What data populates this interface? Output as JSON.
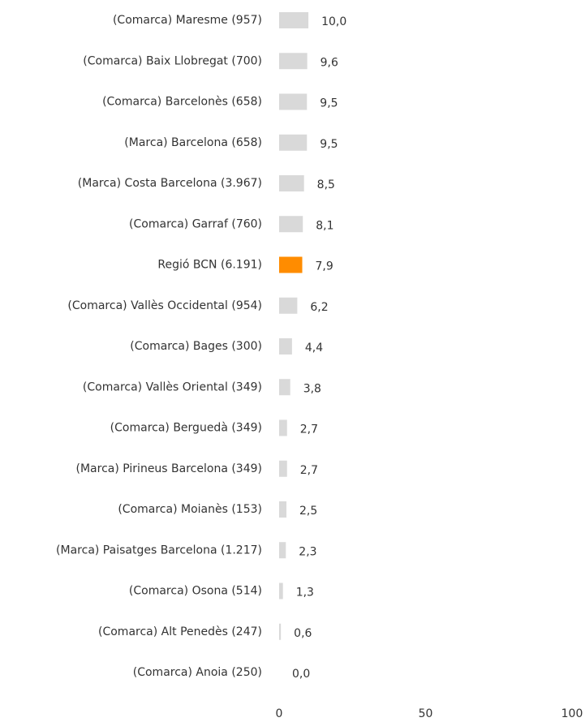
{
  "chart_data": {
    "type": "hbar",
    "categories": [
      "(Comarca) Maresme (957)",
      "(Comarca) Baix Llobregat (700)",
      "(Comarca) Barcelonès (658)",
      "(Marca) Barcelona (658)",
      "(Marca) Costa Barcelona (3.967)",
      "(Comarca) Garraf (760)",
      "Regió BCN (6.191)",
      "(Comarca) Vallès Occidental (954)",
      "(Comarca) Bages (300)",
      "(Comarca) Vallès Oriental (349)",
      "(Comarca) Berguedà (349)",
      "(Marca) Pirineus Barcelona (349)",
      "(Comarca) Moianès (153)",
      "(Marca) Paisatges Barcelona (1.217)",
      "(Comarca) Osona (514)",
      "(Comarca) Alt Penedès (247)",
      "(Comarca) Anoia (250)"
    ],
    "values": [
      10.0,
      9.6,
      9.5,
      9.5,
      8.5,
      8.1,
      7.9,
      6.2,
      4.4,
      3.8,
      2.7,
      2.7,
      2.5,
      2.3,
      1.3,
      0.6,
      0.0
    ],
    "value_labels": [
      "10,0",
      "9,6",
      "9,5",
      "9,5",
      "8,5",
      "8,1",
      "7,9",
      "6,2",
      "4,4",
      "3,8",
      "2,7",
      "2,7",
      "2,5",
      "2,3",
      "1,3",
      "0,6",
      "0,0"
    ],
    "colors": [
      "#d9d9d9",
      "#d9d9d9",
      "#d9d9d9",
      "#d9d9d9",
      "#d9d9d9",
      "#d9d9d9",
      "#ff8c00",
      "#d9d9d9",
      "#d9d9d9",
      "#d9d9d9",
      "#d9d9d9",
      "#d9d9d9",
      "#d9d9d9",
      "#d9d9d9",
      "#d9d9d9",
      "#d9d9d9",
      "#d9d9d9"
    ],
    "label_colors": [
      "#333333",
      "#333333",
      "#333333",
      "#333333",
      "#333333",
      "#333333",
      "#ff8c00",
      "#333333",
      "#333333",
      "#333333",
      "#333333",
      "#333333",
      "#333333",
      "#333333",
      "#333333",
      "#333333",
      "#333333"
    ],
    "xlim": [
      0,
      100
    ],
    "xticks": [
      0,
      50,
      100
    ],
    "grid": false
  }
}
